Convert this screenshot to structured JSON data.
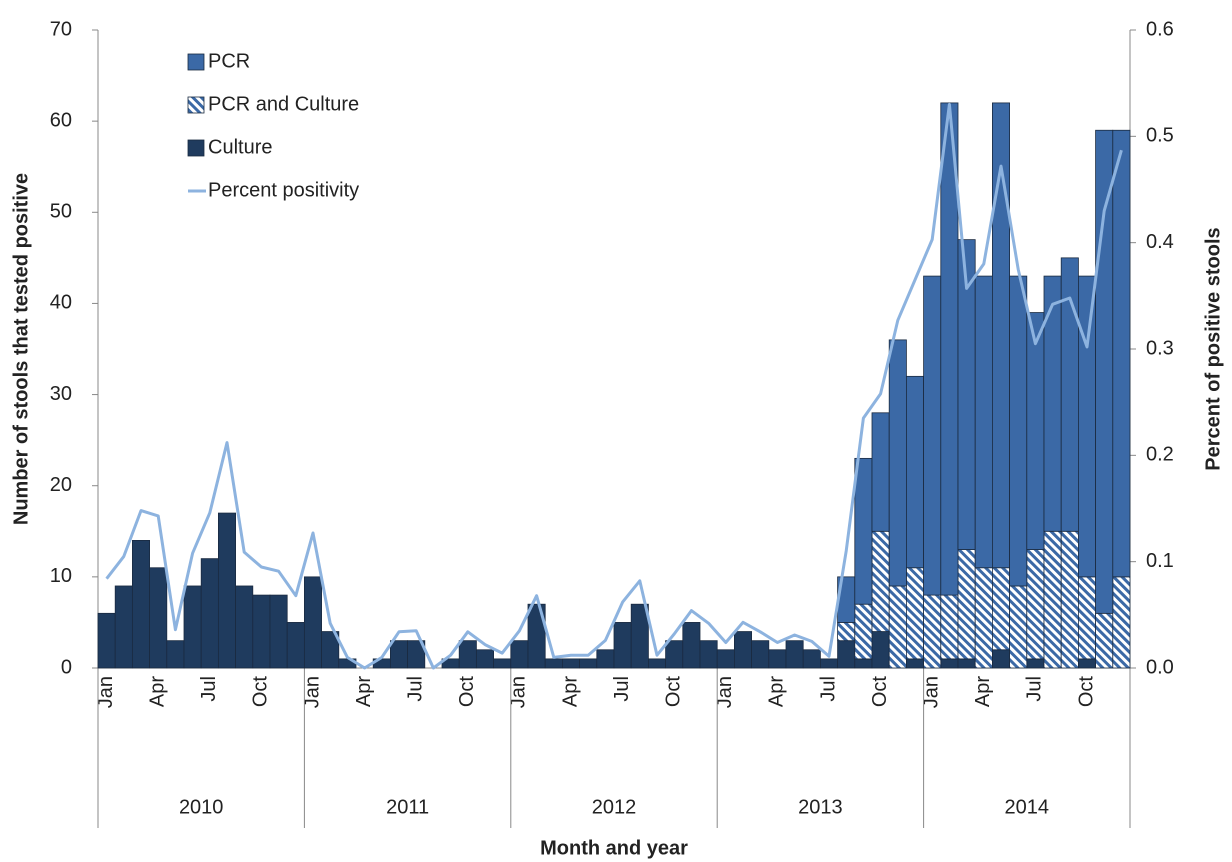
{
  "chart_data": {
    "type": "bar",
    "x_label": "Month and year",
    "y_label": "Number of stools that tested positive",
    "y2_label": "Percent of positive stools",
    "categories": [
      "Jan",
      null,
      null,
      "Apr",
      null,
      null,
      "Jul",
      null,
      null,
      "Oct",
      null,
      null,
      "Jan",
      null,
      null,
      "Apr",
      null,
      null,
      "Jul",
      null,
      null,
      "Oct",
      null,
      null,
      "Jan",
      null,
      null,
      "Apr",
      null,
      null,
      "Jul",
      null,
      null,
      "Oct",
      null,
      null,
      "Jan",
      null,
      null,
      "Apr",
      null,
      null,
      "Jul",
      null,
      null,
      "Oct",
      null,
      null,
      "Jan",
      null,
      null,
      "Apr",
      null,
      null,
      "Jul",
      null,
      null,
      "Oct",
      null,
      null
    ],
    "year_labels": [
      "2010",
      "2011",
      "2012",
      "2013",
      "2014"
    ],
    "series": [
      {
        "name": "Culture",
        "color": "#1f3b5e",
        "values": [
          6,
          9,
          14,
          11,
          3,
          9,
          12,
          17,
          9,
          8,
          8,
          5,
          10,
          4,
          1,
          0,
          1,
          3,
          3,
          0,
          1,
          3,
          2,
          1,
          3,
          7,
          1,
          1,
          1,
          2,
          5,
          7,
          1,
          3,
          5,
          3,
          2,
          4,
          3,
          2,
          3,
          2,
          1,
          3,
          1,
          4,
          0,
          1,
          0,
          1,
          1,
          0,
          2,
          0,
          1,
          0,
          0,
          1,
          0,
          0
        ]
      },
      {
        "name": "PCR and Culture",
        "color": "#3b69a6",
        "pattern": "hatch",
        "values": [
          0,
          0,
          0,
          0,
          0,
          0,
          0,
          0,
          0,
          0,
          0,
          0,
          0,
          0,
          0,
          0,
          0,
          0,
          0,
          0,
          0,
          0,
          0,
          0,
          0,
          0,
          0,
          0,
          0,
          0,
          0,
          0,
          0,
          0,
          0,
          0,
          0,
          0,
          0,
          0,
          0,
          0,
          0,
          2,
          6,
          11,
          9,
          10,
          8,
          7,
          12,
          11,
          9,
          9,
          12,
          15,
          15,
          9,
          6,
          10
        ]
      },
      {
        "name": "PCR",
        "color": "#3b69a6",
        "values": [
          0,
          0,
          0,
          0,
          0,
          0,
          0,
          0,
          0,
          0,
          0,
          0,
          0,
          0,
          0,
          0,
          0,
          0,
          0,
          0,
          0,
          0,
          0,
          0,
          0,
          0,
          0,
          0,
          0,
          0,
          0,
          0,
          0,
          0,
          0,
          0,
          0,
          0,
          0,
          0,
          0,
          0,
          0,
          5,
          16,
          13,
          27,
          21,
          35,
          54,
          34,
          32,
          51,
          34,
          26,
          28,
          30,
          33,
          53,
          49
        ]
      },
      {
        "name": "Percent positivity",
        "color": "#8db3df",
        "type": "line",
        "axis": "y2",
        "values": [
          0.084,
          0.105,
          0.148,
          0.143,
          0.036,
          0.108,
          0.146,
          0.212,
          0.109,
          0.095,
          0.091,
          0.068,
          0.127,
          0.042,
          0.01,
          0.0,
          0.01,
          0.034,
          0.035,
          0.0,
          0.012,
          0.034,
          0.022,
          0.014,
          0.035,
          0.068,
          0.01,
          0.012,
          0.012,
          0.026,
          0.062,
          0.082,
          0.012,
          0.032,
          0.054,
          0.042,
          0.024,
          0.043,
          0.034,
          0.024,
          0.031,
          0.025,
          0.011,
          0.11,
          0.235,
          0.258,
          0.327,
          0.365,
          0.403,
          0.53,
          0.357,
          0.38,
          0.472,
          0.375,
          0.305,
          0.342,
          0.348,
          0.302,
          0.43,
          0.487
        ]
      }
    ],
    "stacked": true,
    "ylim": [
      0,
      70
    ],
    "yticks": [
      0,
      10,
      20,
      30,
      40,
      50,
      60,
      70
    ],
    "y2lim": [
      0,
      0.6
    ],
    "y2ticks": [
      {
        "value": 0,
        "label": "0.0"
      },
      0.1,
      0.2,
      0.3,
      0.4,
      0.5,
      0.6
    ],
    "legend": "top-left",
    "grid": false
  }
}
